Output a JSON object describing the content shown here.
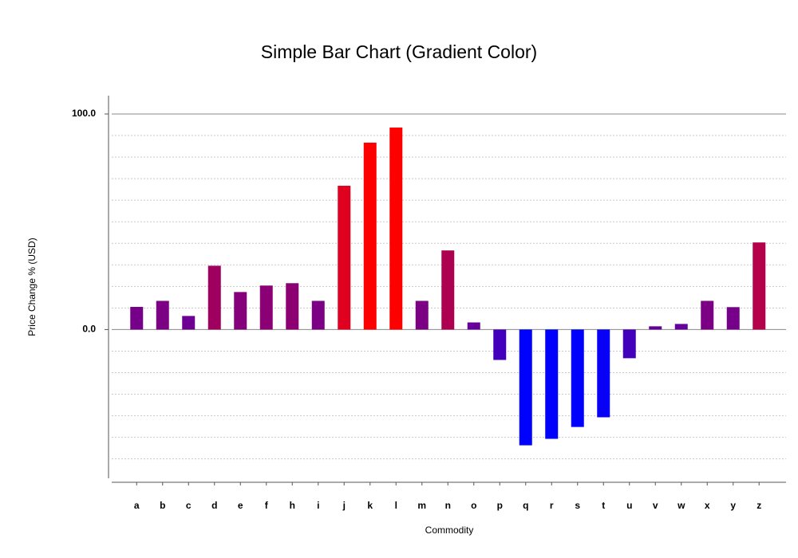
{
  "chart_data": {
    "type": "bar",
    "title": "Simple Bar Chart (Gradient Color)",
    "x_label": "Commodity",
    "y_label": "Price Change % (USD)",
    "categories": [
      "a",
      "b",
      "c",
      "d",
      "e",
      "f",
      "h",
      "i",
      "j",
      "k",
      "l",
      "m",
      "n",
      "o",
      "p",
      "q",
      "r",
      "s",
      "t",
      "u",
      "v",
      "w",
      "x",
      "y",
      "z"
    ],
    "values": [
      10.5,
      13.3,
      6.3,
      29.6,
      17.4,
      20.4,
      21.5,
      13.3,
      66.7,
      86.7,
      93.7,
      13.3,
      36.7,
      3.3,
      -14.1,
      -53.7,
      -50.7,
      -45.2,
      -40.7,
      -13.3,
      1.5,
      2.6,
      13.3,
      10.4,
      40.4
    ],
    "colors": [
      "#760089",
      "#7c0083",
      "#6d0092",
      "#9f0060",
      "#85007a",
      "#8b0074",
      "#8d0072",
      "#7c0083",
      "#e00020",
      "#ff0000",
      "#ff0000",
      "#7c0083",
      "#ae0051",
      "#670098",
      "#4200bd",
      "#0000ff",
      "#0000ff",
      "#0000ff",
      "#0900f6",
      "#4300bc",
      "#63009c",
      "#65009a",
      "#7c0083",
      "#760089",
      "#b5004a"
    ],
    "ylim": [
      -69,
      108.5
    ],
    "yticks": [
      {
        "value": 0,
        "label": "0.0"
      },
      {
        "value": 100,
        "label": "100.0"
      }
    ],
    "minor_yticks": [
      -60,
      -50,
      -40,
      -30,
      -20,
      -10,
      10,
      20,
      30,
      40,
      50,
      60,
      70,
      80,
      90
    ],
    "grid": true
  }
}
